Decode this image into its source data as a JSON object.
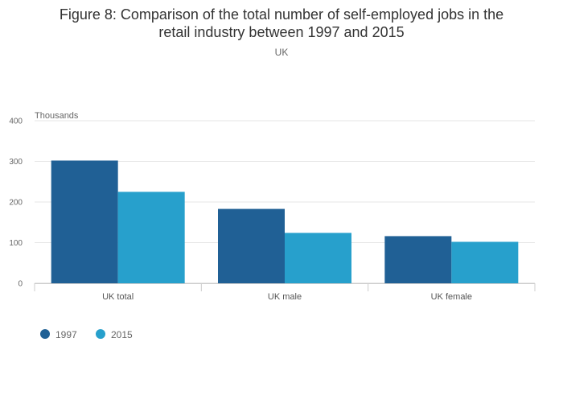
{
  "chart_data": {
    "type": "bar",
    "title_lines": [
      "Figure 8: Comparison of the total number of self-employed jobs in the",
      "retail industry between 1997 and 2015"
    ],
    "subtitle": "UK",
    "ylabel": "Thousands",
    "ylim": [
      0,
      400
    ],
    "yticks": [
      0,
      100,
      200,
      300,
      400
    ],
    "categories": [
      "UK total",
      "UK male",
      "UK female"
    ],
    "series": [
      {
        "name": "1997",
        "color": "#206095",
        "values": [
          302,
          183,
          116
        ]
      },
      {
        "name": "2015",
        "color": "#27a0cc",
        "values": [
          225,
          124,
          102
        ]
      }
    ],
    "grid": true,
    "legend_position": "bottom-left"
  }
}
